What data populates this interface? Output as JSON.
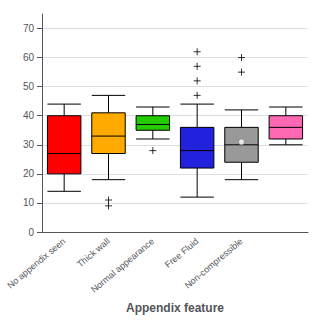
{
  "chart_data": {
    "type": "boxplot",
    "xlabel": "Appendix feature",
    "categories": [
      "No appendix seen",
      "Thick wall",
      "Normal appearance",
      "Free Fluid",
      "Non-compressible",
      null
    ],
    "colors": [
      "#ff0000",
      "#ffaa00",
      "#22cc00",
      "#2222dd",
      "#999999",
      "#ff69b4"
    ],
    "boxes": [
      {
        "q1": 20,
        "median": 27,
        "q3": 40,
        "whisker_low": 14,
        "whisker_high": 44,
        "fliers_low": [],
        "fliers_high": []
      },
      {
        "q1": 27,
        "median": 33,
        "q3": 41,
        "whisker_low": 18,
        "whisker_high": 47,
        "fliers_low": [
          9,
          11
        ],
        "fliers_high": []
      },
      {
        "q1": 35,
        "median": 37,
        "q3": 40,
        "whisker_low": 32,
        "whisker_high": 43,
        "fliers_low": [
          28
        ],
        "fliers_high": []
      },
      {
        "q1": 22,
        "median": 28,
        "q3": 36,
        "whisker_low": 12,
        "whisker_high": 44,
        "fliers_low": [],
        "fliers_high": [
          52,
          57,
          62,
          47
        ]
      },
      {
        "q1": 24,
        "median": 30,
        "q3": 36,
        "whisker_low": 18,
        "whisker_high": 42,
        "fliers_low": [],
        "fliers_high": [
          55,
          60
        ],
        "mean": 31
      },
      {
        "q1": 32,
        "median": 36,
        "q3": 40,
        "whisker_low": 30,
        "whisker_high": 43,
        "fliers_low": [],
        "fliers_high": []
      }
    ],
    "ylim": [
      0,
      75
    ],
    "yticks": [
      0,
      10,
      20,
      30,
      40,
      50,
      60,
      70
    ],
    "grid": true
  }
}
